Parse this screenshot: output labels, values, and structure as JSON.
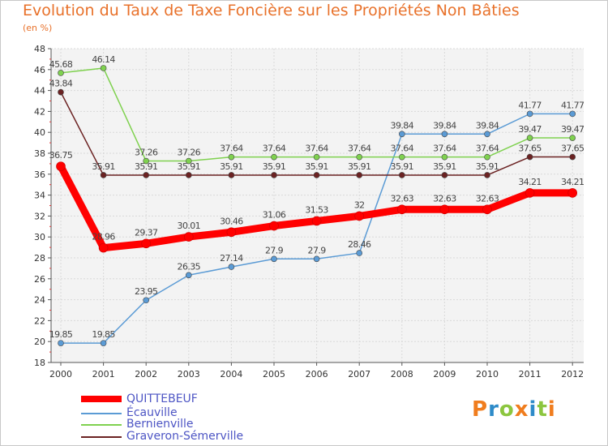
{
  "chart_data": {
    "type": "line",
    "title": "Evolution du Taux de Taxe Foncière sur les Propriétés Non Bâties",
    "subtitle": "(en %)",
    "x": [
      "2000",
      "2001",
      "2002",
      "2003",
      "2004",
      "2005",
      "2006",
      "2007",
      "2008",
      "2009",
      "2010",
      "2011",
      "2012"
    ],
    "ylim": [
      18,
      48
    ],
    "yticks": [
      18,
      20,
      22,
      24,
      26,
      28,
      30,
      32,
      34,
      36,
      38,
      40,
      42,
      44,
      46,
      48
    ],
    "grid": true,
    "series": [
      {
        "name": "QUITTEBEUF",
        "color": "#ff0000",
        "values": [
          36.75,
          28.96,
          29.37,
          30.01,
          30.46,
          31.06,
          31.53,
          32,
          32.63,
          32.63,
          32.63,
          34.21,
          34.21
        ],
        "labels": [
          "36.75",
          "28.96",
          "29.37",
          "30.01",
          "30.46",
          "31.06",
          "31.53",
          "32",
          "32.63",
          "32.63",
          "32.63",
          "34.21",
          "34.21"
        ]
      },
      {
        "name": "Écauville",
        "color": "#5b9bd5",
        "values": [
          19.85,
          19.85,
          23.95,
          26.35,
          27.14,
          27.9,
          27.9,
          28.46,
          39.84,
          39.84,
          39.84,
          41.77,
          41.77
        ],
        "labels": [
          "19.85",
          "19.85",
          "23.95",
          "26.35",
          "27.14",
          "27.9",
          "27.9",
          "28.46",
          "39.84",
          "39.84",
          "39.84",
          "41.77",
          "41.77"
        ]
      },
      {
        "name": "Bernienville",
        "color": "#7fd14f",
        "values": [
          45.68,
          46.14,
          37.26,
          37.26,
          37.64,
          37.64,
          37.64,
          37.64,
          37.64,
          37.64,
          37.64,
          39.47,
          39.47
        ],
        "labels": [
          "45.68",
          "46.14",
          "37.26",
          "37.26",
          "37.64",
          "37.64",
          "37.64",
          "37.64",
          "37.64",
          "37.64",
          "37.64",
          "39.47",
          "39.47"
        ]
      },
      {
        "name": "Graveron-Sémerville",
        "color": "#6b2222",
        "values": [
          43.84,
          35.91,
          35.91,
          35.91,
          35.91,
          35.91,
          35.91,
          35.91,
          35.91,
          35.91,
          35.91,
          37.65,
          37.65
        ],
        "labels": [
          "43.84",
          "35.91",
          "35.91",
          "35.91",
          "35.91",
          "35.91",
          "35.91",
          "35.91",
          "35.91",
          "35.91",
          "35.91",
          "37.65",
          "37.65"
        ]
      }
    ]
  },
  "legend": {
    "items": [
      "QUITTEBEUF",
      "Écauville",
      "Bernienville",
      "Graveron-Sémerville"
    ]
  },
  "logo": {
    "text": "Proxiti",
    "colors": [
      "#f07d1e",
      "#2e8bc9",
      "#8cc63f",
      "#f07d1e",
      "#2e8bc9",
      "#8cc63f",
      "#f07d1e"
    ]
  }
}
